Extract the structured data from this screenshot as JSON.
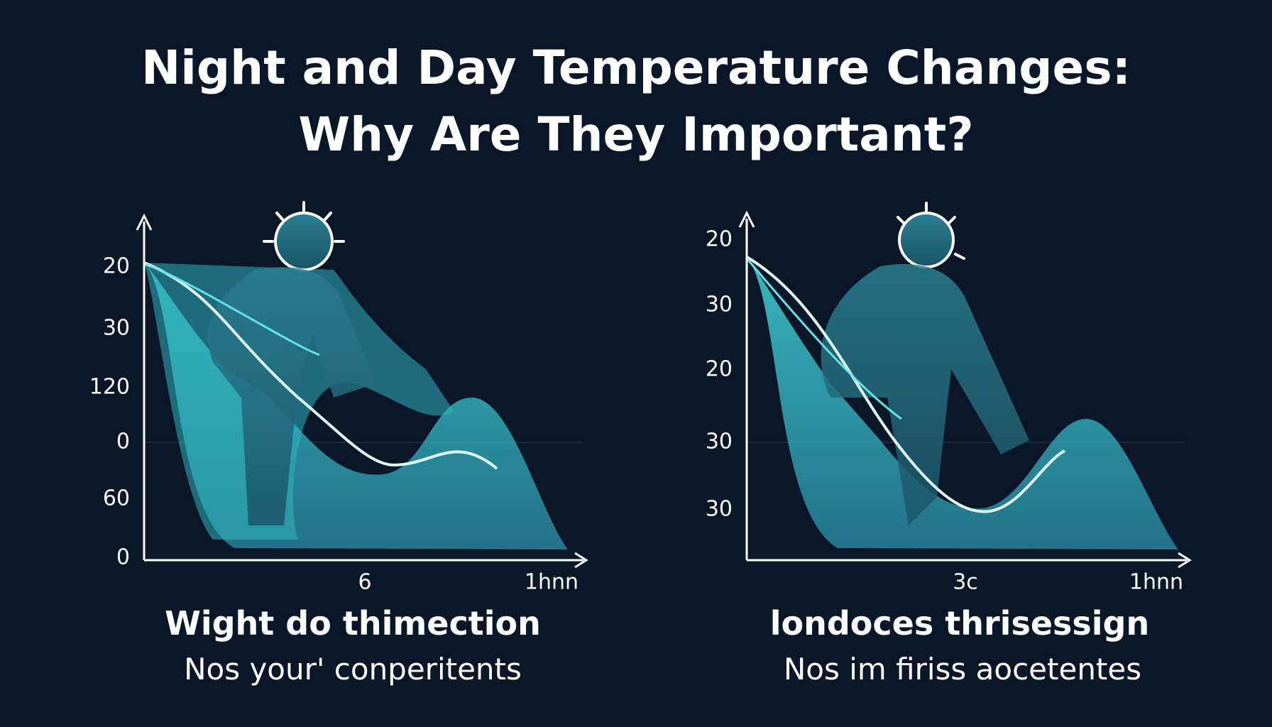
{
  "title": [
    "Night and Day Temperature Changes:",
    "Why Are They Important?"
  ],
  "panels": [
    {
      "y_labels": [
        "20",
        "30",
        "120",
        "0",
        "60",
        "0"
      ],
      "x_labels": [
        "6",
        "1hnn"
      ],
      "heading": "Wight do thimection",
      "subtitle": "Nos your' conperitents"
    },
    {
      "y_labels": [
        "20",
        "30",
        "20",
        "30",
        "30"
      ],
      "x_labels": [
        "3c",
        "1hnn"
      ],
      "heading": "londoces thrisessign",
      "subtitle": "Nos im firiss aocetentes"
    }
  ]
}
